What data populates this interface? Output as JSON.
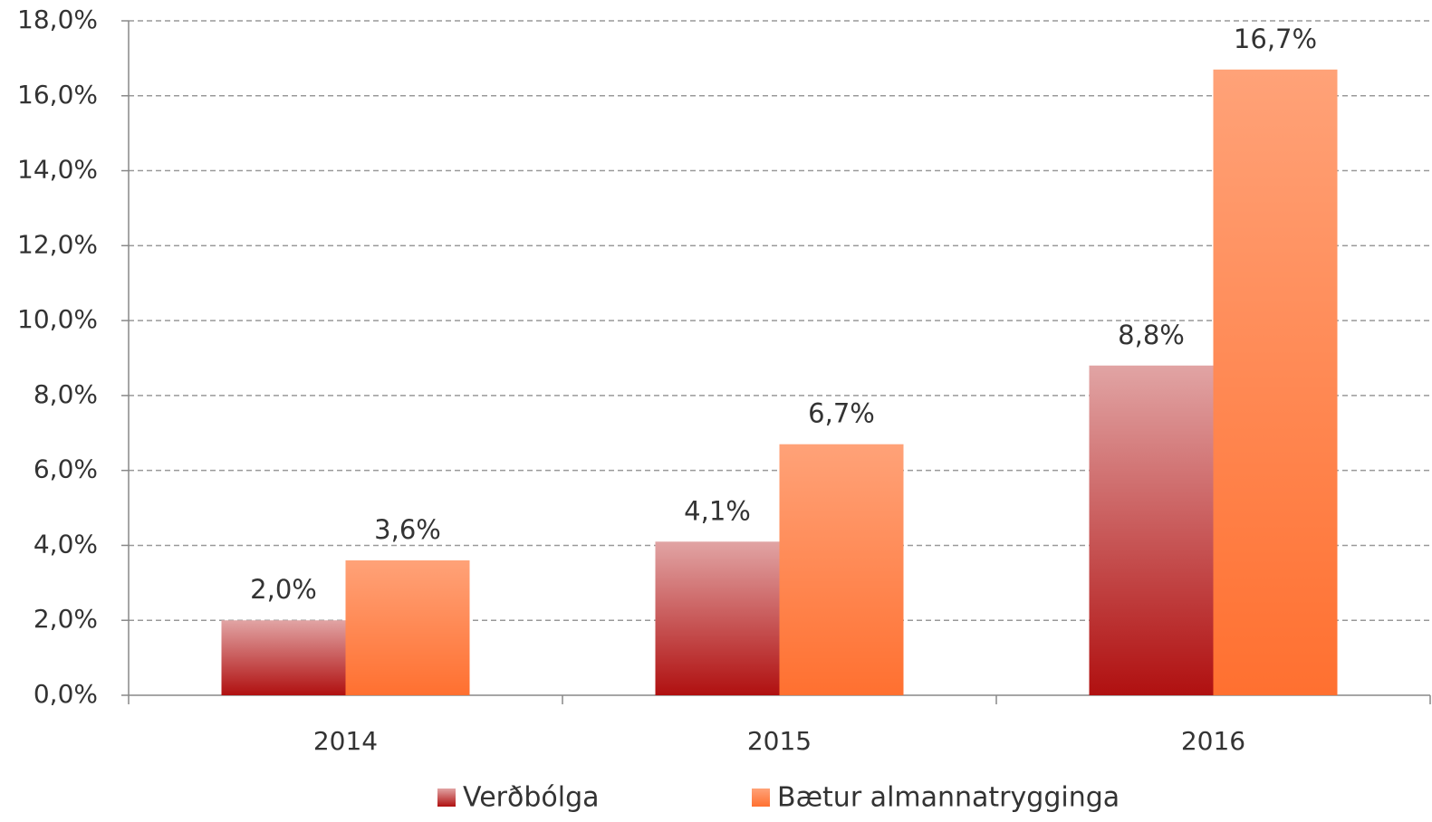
{
  "chart_data": {
    "type": "bar",
    "categories": [
      "2014",
      "2015",
      "2016"
    ],
    "series": [
      {
        "name": "Verðbólga",
        "color": "#b01010",
        "values": [
          2.0,
          4.1,
          8.8
        ],
        "value_labels": [
          "2,0%",
          "4,1%",
          "8,8%"
        ]
      },
      {
        "name": "Bætur almannatrygginga",
        "color": "#ff7030",
        "values": [
          3.6,
          6.7,
          16.7
        ],
        "value_labels": [
          "3,6%",
          "6,7%",
          "16,7%"
        ]
      }
    ],
    "ylim": [
      0,
      18
    ],
    "yticks": [
      {
        "value": 0,
        "label": "0,0%"
      },
      {
        "value": 2,
        "label": "2,0%"
      },
      {
        "value": 4,
        "label": "4,0%"
      },
      {
        "value": 6,
        "label": "6,0%"
      },
      {
        "value": 8,
        "label": "8,0%"
      },
      {
        "value": 10,
        "label": "10,0%"
      },
      {
        "value": 12,
        "label": "12,0%"
      },
      {
        "value": 14,
        "label": "14,0%"
      },
      {
        "value": 16,
        "label": "16,0%"
      },
      {
        "value": 18,
        "label": "18,0%"
      }
    ],
    "grid": true,
    "legend": "bottom"
  }
}
